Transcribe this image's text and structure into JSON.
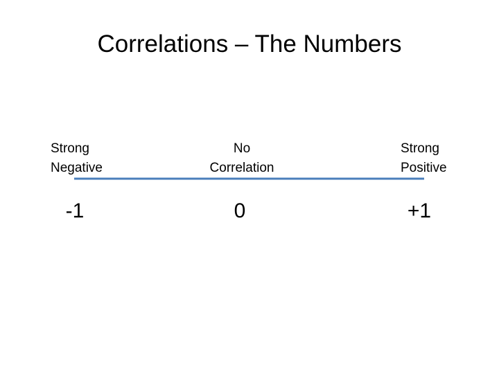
{
  "title": "Correlations – The Numbers",
  "scale": {
    "points": [
      {
        "label": [
          "Strong",
          "Negative"
        ],
        "value": "-1"
      },
      {
        "label": [
          "No",
          "Correlation"
        ],
        "value": "0"
      },
      {
        "label": [
          "Strong",
          "Positive"
        ],
        "value": "+1"
      }
    ]
  }
}
